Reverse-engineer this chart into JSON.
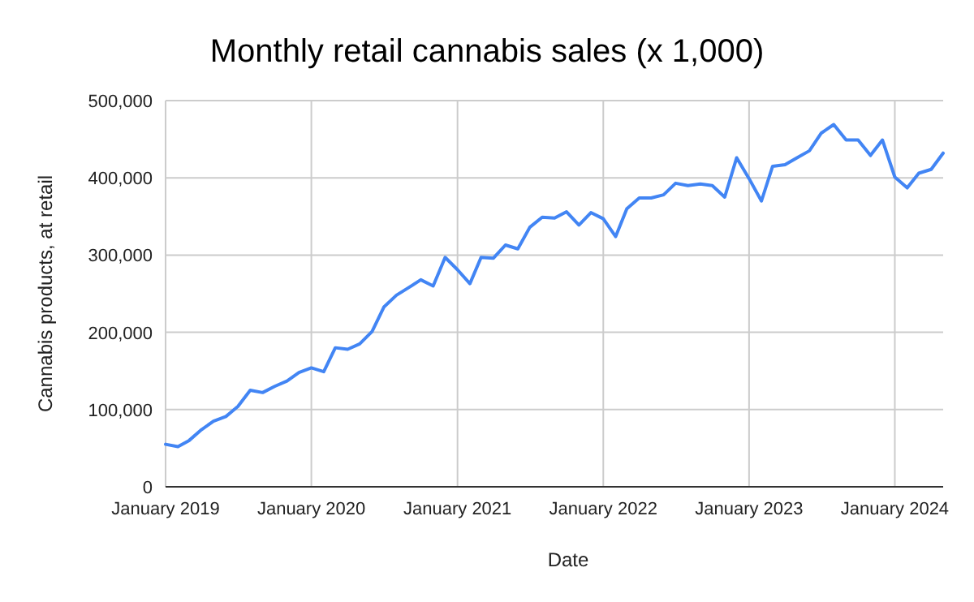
{
  "chart_data": {
    "type": "line",
    "title": "Monthly retail cannabis sales (x 1,000)",
    "xlabel": "Date",
    "ylabel": "Cannabis products, at retail",
    "x": [
      "2019-01",
      "2019-02",
      "2019-03",
      "2019-04",
      "2019-05",
      "2019-06",
      "2019-07",
      "2019-08",
      "2019-09",
      "2019-10",
      "2019-11",
      "2019-12",
      "2020-01",
      "2020-02",
      "2020-03",
      "2020-04",
      "2020-05",
      "2020-06",
      "2020-07",
      "2020-08",
      "2020-09",
      "2020-10",
      "2020-11",
      "2020-12",
      "2021-01",
      "2021-02",
      "2021-03",
      "2021-04",
      "2021-05",
      "2021-06",
      "2021-07",
      "2021-08",
      "2021-09",
      "2021-10",
      "2021-11",
      "2021-12",
      "2022-01",
      "2022-02",
      "2022-03",
      "2022-04",
      "2022-05",
      "2022-06",
      "2022-07",
      "2022-08",
      "2022-09",
      "2022-10",
      "2022-11",
      "2022-12",
      "2023-01",
      "2023-02",
      "2023-03",
      "2023-04",
      "2023-05",
      "2023-06",
      "2023-07",
      "2023-08",
      "2023-09",
      "2023-10",
      "2023-11",
      "2023-12",
      "2024-01",
      "2024-02",
      "2024-03",
      "2024-04",
      "2024-05"
    ],
    "series": [
      {
        "color": "#4285f4",
        "values": [
          55000,
          52000,
          60000,
          74000,
          85000,
          91000,
          104000,
          125000,
          122000,
          130000,
          137000,
          148000,
          154000,
          149000,
          180000,
          178000,
          185000,
          201000,
          233000,
          248000,
          258000,
          268000,
          260000,
          297000,
          281000,
          263000,
          297000,
          296000,
          313000,
          308000,
          336000,
          349000,
          348000,
          356000,
          339000,
          355000,
          347000,
          324000,
          360000,
          374000,
          374000,
          378000,
          393000,
          390000,
          392000,
          390000,
          375000,
          426000,
          399000,
          370000,
          415000,
          417000,
          426000,
          435000,
          458000,
          469000,
          449000,
          449000,
          429000,
          449000,
          401000,
          387000,
          406000,
          411000,
          432000
        ]
      }
    ],
    "xlim": [
      "2019-01",
      "2024-05"
    ],
    "xticks": [
      {
        "value": "2019-01",
        "label": "January 2019"
      },
      {
        "value": "2020-01",
        "label": "January 2020"
      },
      {
        "value": "2021-01",
        "label": "January 2021"
      },
      {
        "value": "2022-01",
        "label": "January 2022"
      },
      {
        "value": "2023-01",
        "label": "January 2023"
      },
      {
        "value": "2024-01",
        "label": "January 2024"
      }
    ],
    "ylim": [
      0,
      500000
    ],
    "yticks": [
      {
        "value": 0,
        "label": "0"
      },
      {
        "value": 100000,
        "label": "100,000"
      },
      {
        "value": 200000,
        "label": "200,000"
      },
      {
        "value": 300000,
        "label": "300,000"
      },
      {
        "value": 400000,
        "label": "400,000"
      },
      {
        "value": 500000,
        "label": "500,000"
      }
    ],
    "grid": true,
    "marker": "none",
    "line_style": "solid"
  }
}
